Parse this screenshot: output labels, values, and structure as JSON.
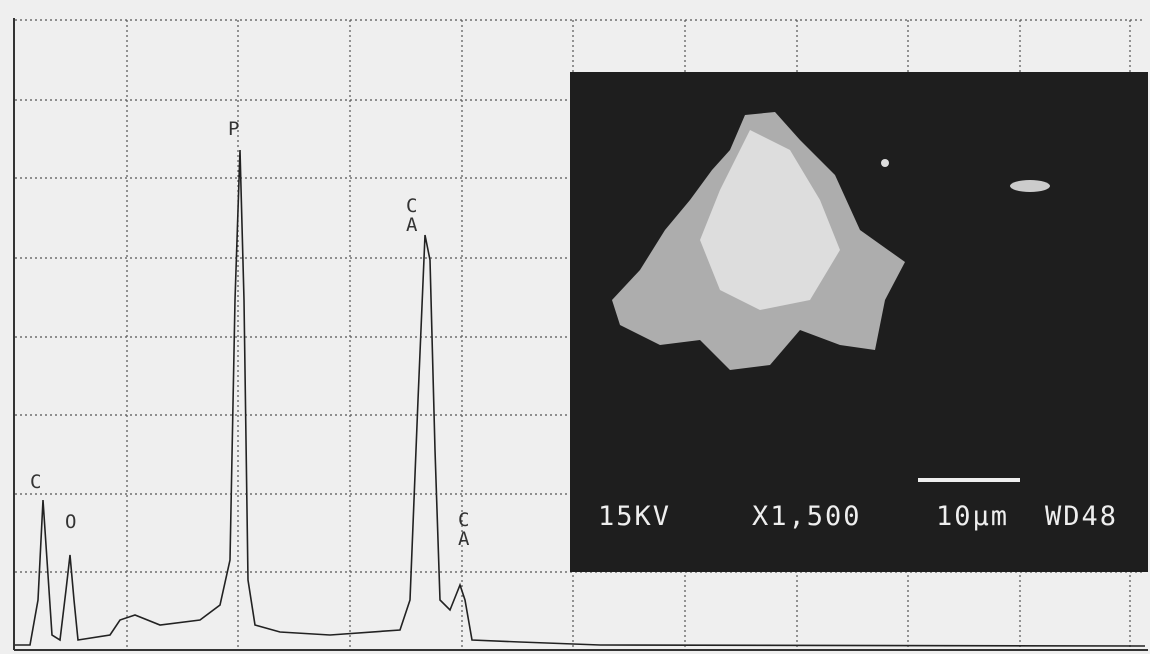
{
  "spectrum": {
    "peak_labels": [
      {
        "lines": [
          "C"
        ]
      },
      {
        "lines": [
          "O"
        ]
      },
      {
        "lines": [
          "P"
        ]
      },
      {
        "lines": [
          "C",
          "A"
        ]
      },
      {
        "lines": [
          "C",
          "A"
        ]
      }
    ]
  },
  "micrograph": {
    "voltage": "15KV",
    "magnification": "X1,500",
    "scale": "10µm",
    "working_distance": "WD48"
  }
}
